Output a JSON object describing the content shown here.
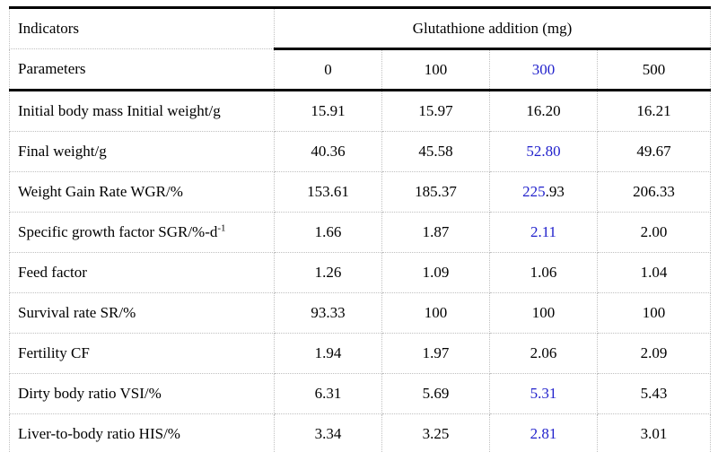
{
  "colors": {
    "accent_blue": "#2222cc",
    "rule_black": "#000000",
    "grid_dotted_gray": "#c0c0c0"
  },
  "table": {
    "corner": {
      "row1": "Indicators",
      "row2": "Parameters"
    },
    "group_header": "Glutathione addition (mg)",
    "doses": [
      [
        {
          "text": "0"
        }
      ],
      [
        {
          "text": "100"
        }
      ],
      [
        {
          "text": "300",
          "color": "blue"
        }
      ],
      [
        {
          "text": "500"
        }
      ]
    ],
    "rows": [
      {
        "label": [
          {
            "text": "Initial body mass Initial weight/g"
          }
        ],
        "values": [
          [
            {
              "text": "15.91"
            }
          ],
          [
            {
              "text": "15.97"
            }
          ],
          [
            {
              "text": "16.20"
            }
          ],
          [
            {
              "text": "16.21"
            }
          ]
        ]
      },
      {
        "label": [
          {
            "text": "Final weight/g"
          }
        ],
        "values": [
          [
            {
              "text": "40.36"
            }
          ],
          [
            {
              "text": "45.58"
            }
          ],
          [
            {
              "text": "52.80",
              "color": "blue"
            }
          ],
          [
            {
              "text": "49.67"
            }
          ]
        ]
      },
      {
        "label": [
          {
            "text": "Weight Gain Rate WGR/%"
          }
        ],
        "values": [
          [
            {
              "text": "153.61"
            }
          ],
          [
            {
              "text": "185.37"
            }
          ],
          [
            {
              "text": "225",
              "color": "blue"
            },
            {
              "text": ".93"
            }
          ],
          [
            {
              "text": "206.33"
            }
          ]
        ]
      },
      {
        "label": [
          {
            "text": "Specific growth factor SGR/%-d"
          },
          {
            "text": "-1",
            "sup": true
          }
        ],
        "values": [
          [
            {
              "text": "1.66"
            }
          ],
          [
            {
              "text": "1.87"
            }
          ],
          [
            {
              "text": "2.11",
              "color": "blue"
            }
          ],
          [
            {
              "text": "2.00"
            }
          ]
        ]
      },
      {
        "label": [
          {
            "text": "Feed factor"
          }
        ],
        "values": [
          [
            {
              "text": "1.26"
            }
          ],
          [
            {
              "text": "1.09"
            }
          ],
          [
            {
              "text": "1.06"
            }
          ],
          [
            {
              "text": "1.04"
            }
          ]
        ]
      },
      {
        "label": [
          {
            "text": "Survival rate SR/%"
          }
        ],
        "values": [
          [
            {
              "text": "93.33"
            }
          ],
          [
            {
              "text": "100"
            }
          ],
          [
            {
              "text": "100"
            }
          ],
          [
            {
              "text": "100"
            }
          ]
        ]
      },
      {
        "label": [
          {
            "text": "Fertility CF"
          }
        ],
        "values": [
          [
            {
              "text": "1.94"
            }
          ],
          [
            {
              "text": "1.97"
            }
          ],
          [
            {
              "text": "2.06"
            }
          ],
          [
            {
              "text": "2.09"
            }
          ]
        ]
      },
      {
        "label": [
          {
            "text": "Dirty body ratio VSI/%"
          }
        ],
        "values": [
          [
            {
              "text": "6.31"
            }
          ],
          [
            {
              "text": "5.69"
            }
          ],
          [
            {
              "text": "5.31",
              "color": "blue"
            }
          ],
          [
            {
              "text": "5.43"
            }
          ]
        ]
      },
      {
        "label": [
          {
            "text": "Liver-to-body ratio HIS/%"
          }
        ],
        "values": [
          [
            {
              "text": "3.34"
            }
          ],
          [
            {
              "text": "3.25"
            }
          ],
          [
            {
              "text": "2.81",
              "color": "blue"
            }
          ],
          [
            {
              "text": "3.01"
            }
          ]
        ]
      }
    ]
  }
}
